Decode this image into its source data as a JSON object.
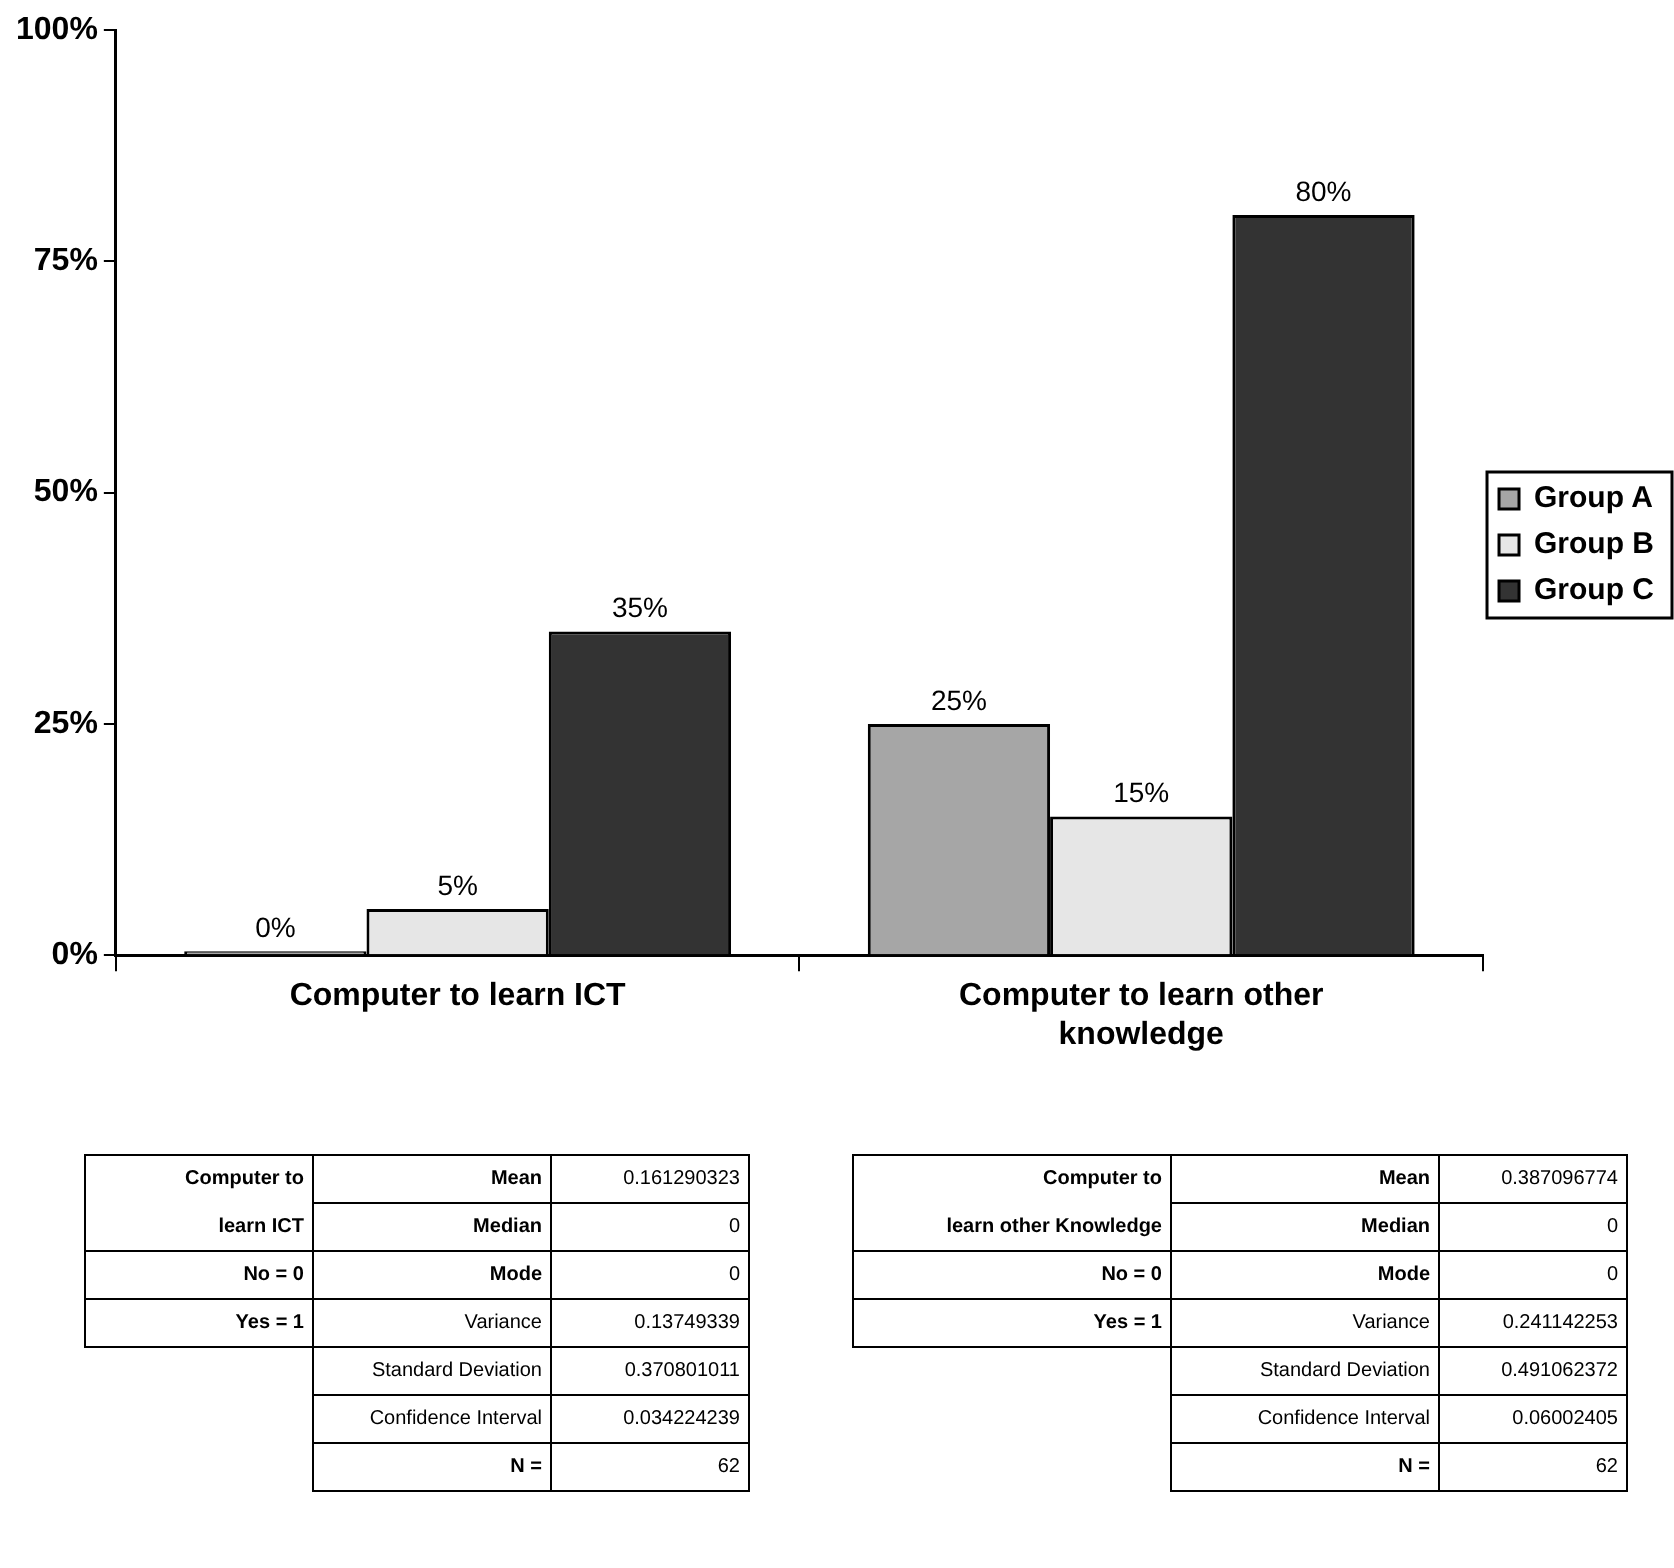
{
  "chart_data": [
    {
      "type": "bar",
      "categories": [
        "Computer to learn ICT",
        "Computer to learn other knowledge"
      ],
      "series": [
        {
          "name": "Group A",
          "color": "#a6a6a6",
          "values": [
            0,
            25
          ],
          "value_labels": [
            "0%",
            "25%"
          ]
        },
        {
          "name": "Group B",
          "color": "#e6e6e6",
          "values": [
            5,
            15
          ],
          "value_labels": [
            "5%",
            "15%"
          ]
        },
        {
          "name": "Group C",
          "color": "#333333",
          "values": [
            35,
            80
          ],
          "value_labels": [
            "35%",
            "80%"
          ]
        }
      ],
      "ylim": [
        0,
        100
      ],
      "yticks": [
        {
          "value": 0,
          "label": "0%"
        },
        {
          "value": 25,
          "label": "25%"
        },
        {
          "value": 50,
          "label": "50%"
        },
        {
          "value": 75,
          "label": "75%"
        },
        {
          "value": 100,
          "label": "100%"
        }
      ],
      "grid": false,
      "legend": "right"
    },
    {
      "type": "other",
      "annotations": [
        "Computer to",
        "learn ICT",
        "No = 0",
        "Yes = 1",
        "Mean",
        "Median",
        "Mode",
        "Variance",
        "Standard Deviation",
        "Confidence Interval",
        "N =",
        "0.161290323",
        "0",
        "0",
        "0.13749339",
        "0.370801011",
        "0.034224239",
        "62"
      ]
    },
    {
      "type": "other",
      "annotations": [
        "Computer to",
        "learn other Knowledge",
        "No = 0",
        "Yes = 1",
        "Mean",
        "Median",
        "Mode",
        "Variance",
        "Standard Deviation",
        "Confidence Interval",
        "N =",
        "0.387096774",
        "0",
        "0",
        "0.241142253",
        "0.491062372",
        "0.06002405",
        "62"
      ]
    }
  ]
}
